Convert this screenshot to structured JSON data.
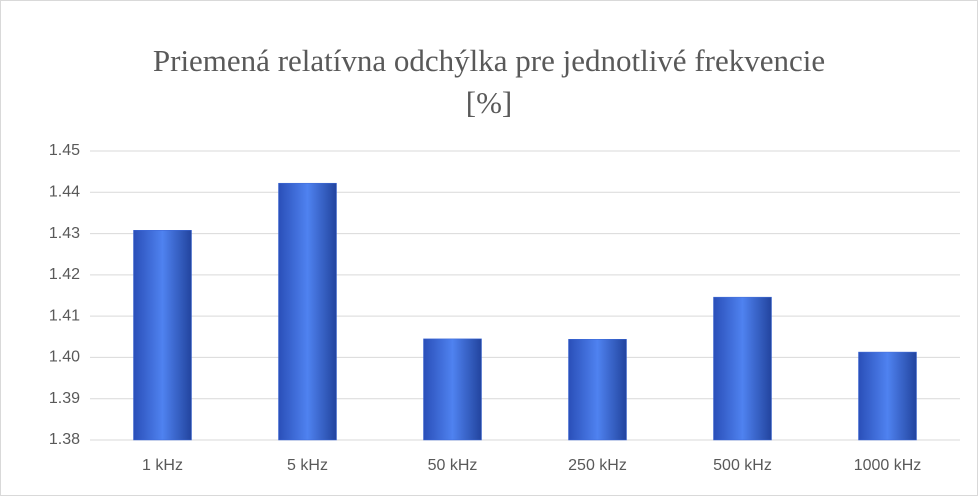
{
  "chart_data": {
    "type": "bar",
    "title": "Priemená relatívna odchýlka pre jednotlivé frekvencie [%]",
    "categories": [
      "1 kHz",
      "5 kHz",
      "50 kHz",
      "250 kHz",
      "500 kHz",
      "1000 kHz"
    ],
    "values": [
      1.4308,
      1.4422,
      1.4045,
      1.4044,
      1.4146,
      1.4013
    ],
    "color": "#3a66d6",
    "ylim": [
      1.38,
      1.45
    ],
    "yticks": [
      1.38,
      1.39,
      {
        "value": 1.4,
        "label": "1.40"
      },
      1.41,
      1.42,
      1.43,
      1.44,
      1.45
    ],
    "grid": true
  }
}
